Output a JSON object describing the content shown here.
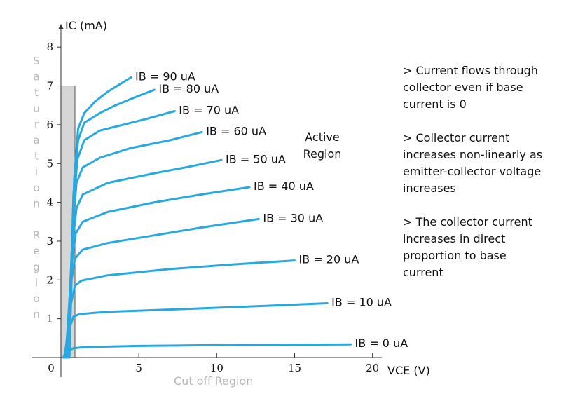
{
  "chart_data": {
    "type": "line",
    "x_label": "VCE (V)",
    "y_label": "IC (mA)",
    "xlim": [
      0,
      20.6
    ],
    "ylim": [
      0,
      8.6
    ],
    "xticks": [
      0,
      5,
      10,
      15,
      20
    ],
    "yticks": [
      0,
      1,
      2,
      3,
      4,
      5,
      6,
      7,
      8
    ],
    "line_color": "#29a8e0",
    "shaded_region": {
      "x": [
        0,
        0.9
      ],
      "y": [
        0,
        7
      ],
      "color": "#d6d6d6"
    },
    "annotations": [
      "Saturation Region",
      "Active Region",
      "Cut off Region"
    ],
    "notes": [
      "> Current flows through collector even if base current is 0",
      "> Collector current increases non-linearly as emitter-collector voltage increases",
      "> The collector current increases in direct proportion to base current"
    ],
    "series": [
      {
        "name": "IB = 0 uA",
        "x": [
          0.15,
          0.4,
          0.8,
          1.5,
          5,
          10,
          18.6
        ],
        "values": [
          0,
          0.15,
          0.24,
          0.27,
          0.3,
          0.32,
          0.34
        ]
      },
      {
        "name": "IB = 10 uA",
        "x": [
          0.2,
          0.5,
          0.8,
          1.2,
          3,
          8,
          13,
          17.1
        ],
        "values": [
          0,
          0.7,
          1.05,
          1.12,
          1.18,
          1.25,
          1.33,
          1.4
        ]
      },
      {
        "name": "IB = 20 uA",
        "x": [
          0.25,
          0.6,
          0.9,
          1.3,
          3,
          7,
          11,
          15
        ],
        "values": [
          0,
          1.3,
          1.85,
          1.98,
          2.12,
          2.28,
          2.4,
          2.5
        ]
      },
      {
        "name": "IB = 30 uA",
        "x": [
          0.3,
          0.6,
          0.9,
          1.4,
          3,
          6,
          9,
          12.7
        ],
        "values": [
          0,
          1.8,
          2.55,
          2.78,
          2.95,
          3.15,
          3.35,
          3.57
        ]
      },
      {
        "name": "IB = 40 uA",
        "x": [
          0.35,
          0.65,
          0.95,
          1.4,
          3,
          6,
          9,
          12.1
        ],
        "values": [
          0,
          2.3,
          3.2,
          3.5,
          3.75,
          4.0,
          4.2,
          4.39
        ]
      },
      {
        "name": "IB = 50 uA",
        "x": [
          0.4,
          0.7,
          1.0,
          1.4,
          3,
          6,
          8,
          10.3
        ],
        "values": [
          0,
          2.8,
          3.85,
          4.2,
          4.5,
          4.75,
          4.9,
          5.09
        ]
      },
      {
        "name": "IB = 60 uA",
        "x": [
          0.45,
          0.75,
          1.0,
          1.4,
          2.5,
          4.5,
          7,
          9.05
        ],
        "values": [
          0,
          3.3,
          4.5,
          4.9,
          5.15,
          5.4,
          5.6,
          5.81
        ]
      },
      {
        "name": "IB = 70 uA",
        "x": [
          0.5,
          0.8,
          1.05,
          1.5,
          2.5,
          4,
          5.5,
          7.3
        ],
        "values": [
          0,
          3.8,
          5.1,
          5.6,
          5.85,
          6.0,
          6.15,
          6.35
        ]
      },
      {
        "name": "IB = 80 uA",
        "x": [
          0.5,
          0.8,
          1.1,
          1.5,
          2.5,
          3.5,
          4.7,
          6
        ],
        "values": [
          0,
          4.2,
          5.6,
          6.05,
          6.3,
          6.5,
          6.7,
          6.9
        ]
      },
      {
        "name": "IB = 90 uA",
        "x": [
          0.55,
          0.85,
          1.1,
          1.5,
          2.2,
          3,
          3.8,
          4.5
        ],
        "values": [
          0,
          4.6,
          5.9,
          6.3,
          6.6,
          6.85,
          7.05,
          7.22
        ]
      }
    ]
  }
}
